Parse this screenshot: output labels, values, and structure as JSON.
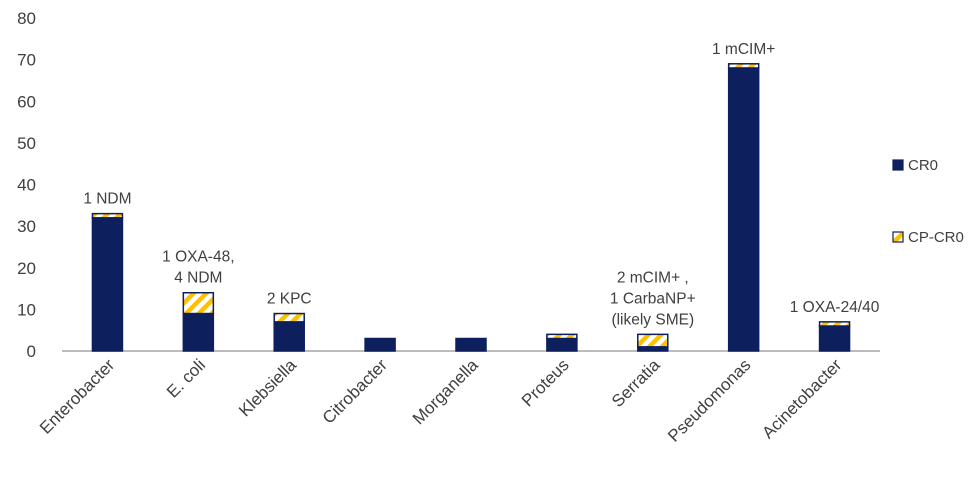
{
  "chart_data": {
    "type": "bar",
    "stacked": true,
    "categories": [
      "Enterobacter",
      "E. coli",
      "Klebsiella",
      "Citrobacter",
      "Morganella",
      "Proteus",
      "Serratia",
      "Pseudomonas",
      "Acinetobacter"
    ],
    "series": [
      {
        "name": "CRO",
        "color": "#0d1f5c",
        "pattern": "solid",
        "values": [
          32,
          9,
          7,
          3,
          3,
          3,
          1,
          68,
          6
        ]
      },
      {
        "name": "CP-CRO",
        "color": "#ffc000",
        "pattern": "diagonal-stripe",
        "values": [
          1,
          5,
          2,
          0,
          0,
          1,
          3,
          1,
          1
        ]
      }
    ],
    "annotations": [
      {
        "category": "Enterobacter",
        "lines": [
          "1 NDM"
        ]
      },
      {
        "category": "E. coli",
        "lines": [
          "1 OXA-48,",
          "4 NDM"
        ]
      },
      {
        "category": "Klebsiella",
        "lines": [
          "2 KPC"
        ]
      },
      {
        "category": "Serratia",
        "lines": [
          "2 mCIM+ ,",
          "1 CarbaNP+",
          "(likely SME)"
        ]
      },
      {
        "category": "Pseudomonas",
        "lines": [
          "1 mCIM+"
        ]
      },
      {
        "category": "Acinetobacter",
        "lines": [
          "1 OXA-24/40"
        ]
      }
    ],
    "yticks": [
      0,
      10,
      20,
      30,
      40,
      50,
      60,
      70,
      80
    ],
    "ylim": [
      0,
      80
    ],
    "grid": false,
    "legend_position": "right",
    "legend": [
      {
        "label": "CR0",
        "series": "CRO"
      },
      {
        "label": "CP-CR0",
        "series": "CP-CRO"
      }
    ]
  }
}
